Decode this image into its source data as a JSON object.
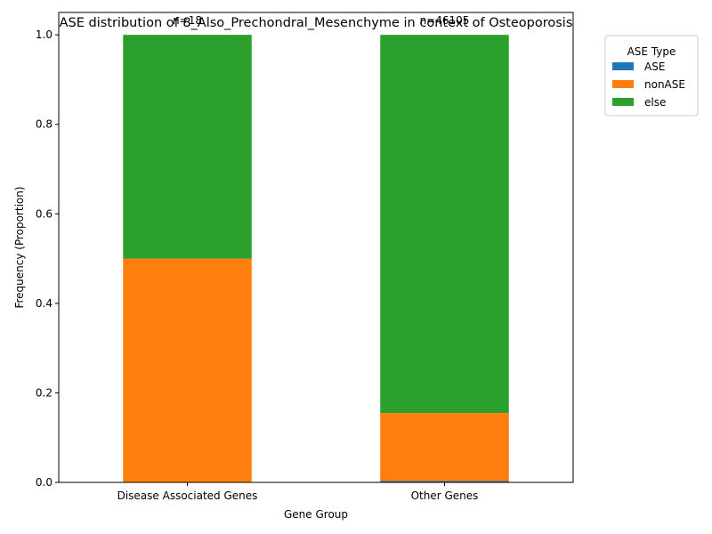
{
  "chart_data": {
    "type": "bar",
    "stacked": true,
    "title": "ASE distribution of 8_Also_Prechondral_Mesenchyme in context of Osteoporosis",
    "xlabel": "Gene Group",
    "ylabel": "Frequency (Proportion)",
    "ylim": [
      0,
      1.05
    ],
    "yticks": [
      "0.0",
      "0.2",
      "0.4",
      "0.6",
      "0.8",
      "1.0"
    ],
    "categories": [
      "Disease Associated Genes",
      "Other Genes"
    ],
    "annotations": [
      "n=18",
      "n=46105"
    ],
    "series": [
      {
        "name": "ASE",
        "color": "#1f77b4",
        "values": [
          0.0,
          0.003
        ]
      },
      {
        "name": "nonASE",
        "color": "#ff7f0e",
        "values": [
          0.5,
          0.152
        ]
      },
      {
        "name": "else",
        "color": "#2ca02c",
        "values": [
          0.5,
          0.845
        ]
      }
    ],
    "legend": {
      "title": "ASE Type",
      "placement": "outside-right-top"
    },
    "grid": false
  }
}
